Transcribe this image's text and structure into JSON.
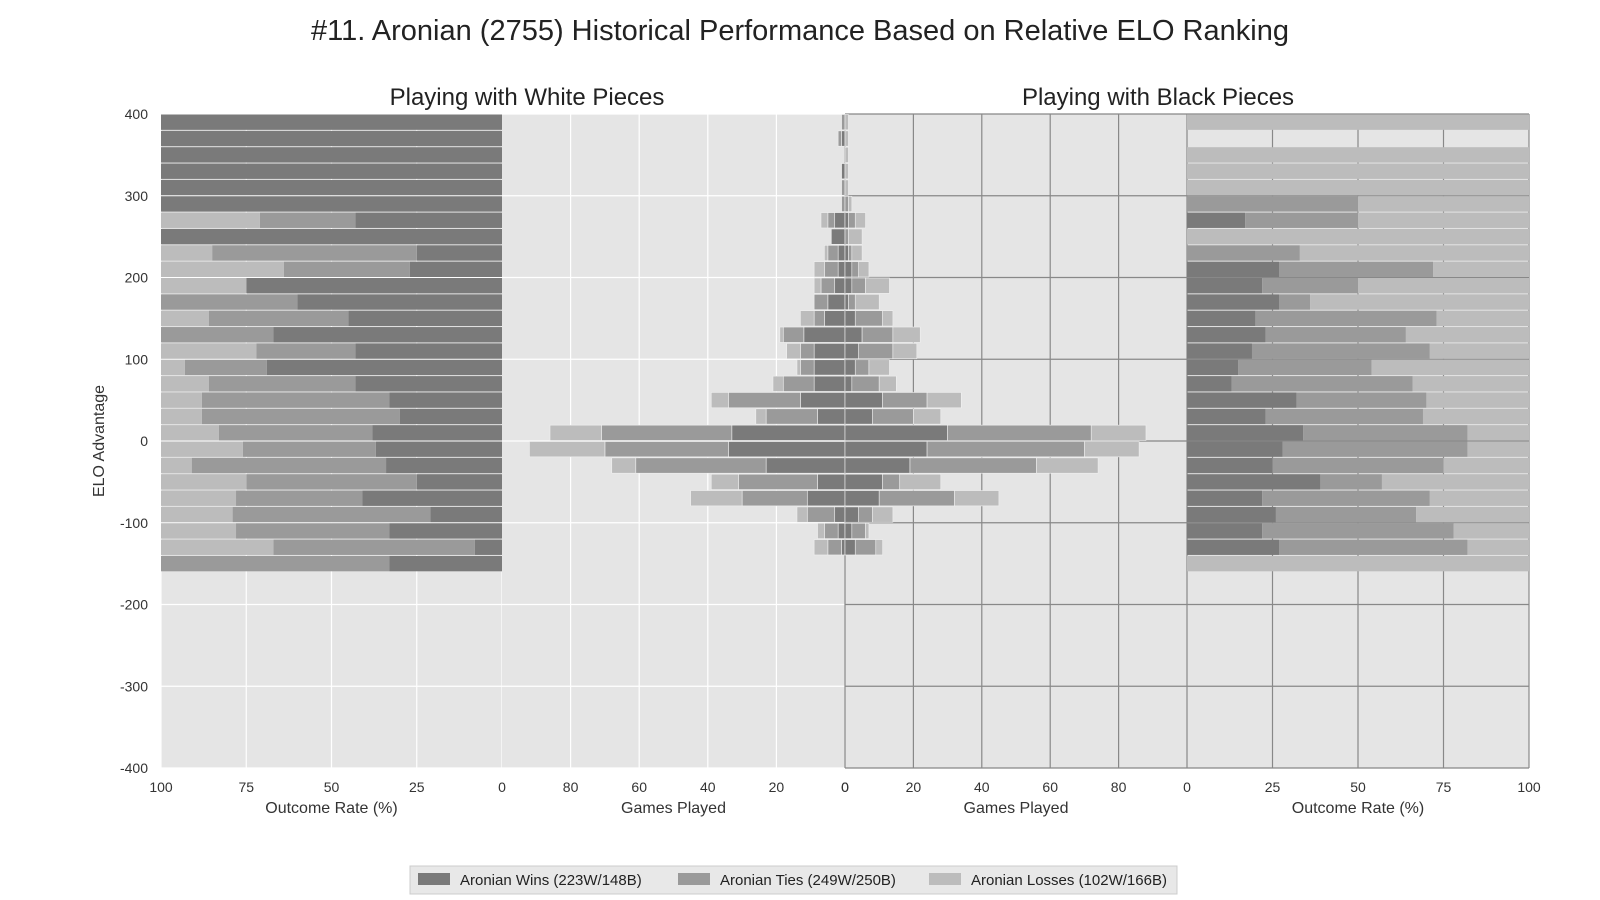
{
  "chart_data": {
    "type": "bar",
    "title": "#11. Aronian (2755) Historical Performance Based on Relative ELO Ranking",
    "ylabel": "ELO Advantage",
    "ylim": [
      -400,
      400
    ],
    "yticks": [
      400,
      300,
      200,
      100,
      0,
      -100,
      -200,
      -300,
      -400
    ],
    "bin_width": 20,
    "colors": {
      "wins": "#7a7a7a",
      "ties": "#9a9a9a",
      "losses": "#bcbcbc",
      "panel_bg": "#e5e5e5",
      "grid_light": "#ffffff",
      "grid_dark": "#888888"
    },
    "legend": {
      "position": "bottom-center",
      "entries": [
        "Aronian Wins (223W/148B)",
        "Aronian Ties (249W/250B)",
        "Aronian Losses (102W/166B)"
      ]
    },
    "subplots": [
      {
        "title": "Playing with White Pieces"
      },
      {
        "title": "Playing with Black Pieces"
      }
    ],
    "panels": [
      {
        "xlabel": "Outcome Rate (%)",
        "xticks": [
          "100",
          "75",
          "50",
          "25",
          "0"
        ],
        "xlim": [
          100,
          0
        ]
      },
      {
        "xlabel": "Games Played",
        "xticks": [
          "80",
          "60",
          "40",
          "20",
          "0"
        ],
        "xlim": [
          100,
          0
        ]
      },
      {
        "xlabel": "Games Played",
        "xticks": [
          "0",
          "20",
          "40",
          "60",
          "80"
        ],
        "xlim": [
          0,
          100
        ]
      },
      {
        "xlabel": "Outcome Rate (%)",
        "xticks": [
          "0",
          "25",
          "50",
          "75",
          "100"
        ],
        "xlim": [
          0,
          100
        ]
      }
    ],
    "white": {
      "elo_bins": [
        390,
        370,
        350,
        330,
        310,
        290,
        270,
        250,
        230,
        210,
        190,
        170,
        150,
        130,
        110,
        90,
        70,
        50,
        30,
        10,
        -10,
        -30,
        -50,
        -70,
        -90,
        -110,
        -130
      ],
      "wins": [
        0,
        1,
        0,
        1,
        0,
        0,
        3,
        4,
        2,
        2,
        3,
        5,
        6,
        12,
        9,
        9,
        9,
        13,
        8,
        33,
        34,
        23,
        8,
        11,
        3,
        2,
        1
      ],
      "ties": [
        1,
        1,
        0,
        0,
        1,
        1,
        2,
        0,
        3,
        4,
        4,
        4,
        3,
        6,
        4,
        4,
        9,
        21,
        15,
        38,
        36,
        38,
        23,
        19,
        8,
        4,
        4
      ],
      "losses": [
        0,
        0,
        0,
        0,
        0,
        0,
        2,
        0,
        1,
        3,
        2,
        0,
        4,
        1,
        4,
        1,
        3,
        5,
        3,
        15,
        22,
        7,
        8,
        15,
        3,
        2,
        4
      ],
      "win_pct": [
        100,
        100,
        100,
        100,
        100,
        100,
        43,
        100,
        25,
        27,
        75,
        60,
        45,
        67,
        43,
        69,
        43,
        33,
        30,
        38,
        37,
        34,
        25,
        41,
        21,
        33,
        8
      ],
      "tie_pct": [
        0,
        0,
        0,
        0,
        0,
        0,
        28,
        0,
        60,
        37,
        0,
        40,
        41,
        33,
        29,
        24,
        43,
        55,
        58,
        45,
        39,
        57,
        50,
        37,
        58,
        45,
        59
      ],
      "loss_pct": [
        0,
        0,
        0,
        0,
        0,
        0,
        29,
        0,
        15,
        36,
        25,
        0,
        14,
        0,
        28,
        7,
        14,
        12,
        12,
        17,
        24,
        9,
        25,
        22,
        21,
        22,
        33
      ],
      "extra_pct_bins": [
        -150
      ],
      "extra_win_pct": [
        33
      ],
      "extra_tie_pct": [
        67
      ],
      "extra_loss_pct": [
        0
      ]
    },
    "black": {
      "elo_bins": [
        390,
        370,
        350,
        330,
        310,
        290,
        270,
        250,
        230,
        210,
        190,
        170,
        150,
        130,
        110,
        90,
        70,
        50,
        30,
        10,
        -10,
        -30,
        -50,
        -70,
        -90,
        -110,
        -130
      ],
      "wins": [
        0,
        0,
        0,
        0,
        0,
        0,
        1,
        0,
        1,
        2,
        2,
        1,
        3,
        5,
        4,
        3,
        2,
        11,
        8,
        30,
        24,
        19,
        11,
        10,
        4,
        2,
        3
      ],
      "ties": [
        0,
        0,
        0,
        0,
        0,
        1,
        2,
        1,
        1,
        2,
        4,
        2,
        8,
        9,
        10,
        4,
        8,
        13,
        12,
        42,
        46,
        37,
        5,
        22,
        4,
        4,
        6
      ],
      "losses": [
        1,
        1,
        1,
        1,
        1,
        1,
        3,
        4,
        3,
        3,
        7,
        7,
        3,
        8,
        7,
        6,
        5,
        10,
        8,
        16,
        16,
        18,
        12,
        13,
        6,
        1,
        2
      ],
      "win_pct": [
        0,
        0,
        0,
        0,
        0,
        0,
        17,
        0,
        0,
        27,
        22,
        27,
        20,
        23,
        19,
        15,
        13,
        32,
        23,
        34,
        28,
        25,
        39,
        22,
        26,
        22,
        27
      ],
      "tie_pct": [
        0,
        0,
        0,
        0,
        0,
        50,
        33,
        0,
        33,
        45,
        28,
        9,
        53,
        41,
        52,
        39,
        53,
        38,
        46,
        48,
        54,
        50,
        18,
        49,
        41,
        56,
        55
      ],
      "loss_pct": [
        100,
        0,
        100,
        100,
        100,
        50,
        50,
        100,
        67,
        28,
        50,
        64,
        27,
        36,
        29,
        46,
        34,
        30,
        31,
        18,
        18,
        25,
        43,
        29,
        33,
        22,
        18
      ],
      "extra_pct_bins": [
        -150
      ],
      "extra_win_pct": [
        0
      ],
      "extra_tie_pct": [
        0
      ],
      "extra_loss_pct": [
        100
      ]
    }
  }
}
